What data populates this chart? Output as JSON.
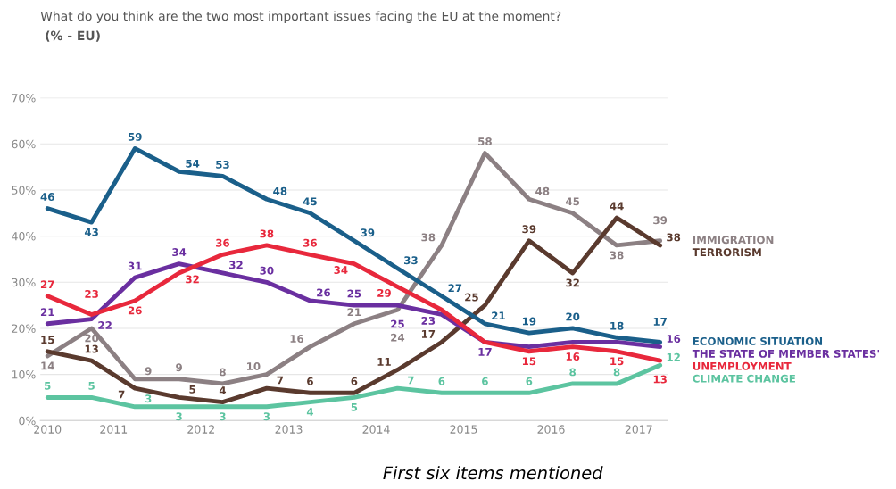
{
  "chart_data": {
    "type": "line",
    "title": "What do you think are the two most important issues facing the EU at the moment?",
    "subtitle": "(% - EU)",
    "x": [
      "2010-05",
      "2010-11",
      "2011-05",
      "2011-11",
      "2012-05",
      "2012-11",
      "2013-05",
      "2013-11",
      "2014-05",
      "2014-11",
      "2015-05",
      "2015-11",
      "2016-05",
      "2016-11",
      "2017-05"
    ],
    "xlim": [
      "2010-04",
      "2017-06"
    ],
    "xticks": [
      {
        "value": "2010-05",
        "label": "2010"
      },
      {
        "value": "2011-02",
        "label": "2011"
      },
      {
        "value": "2012-02",
        "label": "2012"
      },
      {
        "value": "2013-02",
        "label": "2013"
      },
      {
        "value": "2014-02",
        "label": "2014"
      },
      {
        "value": "2015-02",
        "label": "2015"
      },
      {
        "value": "2016-02",
        "label": "2016"
      },
      {
        "value": "2017-02",
        "label": "2017"
      }
    ],
    "ylim": [
      0,
      70
    ],
    "yticks": [
      {
        "value": 0,
        "label": "0%"
      },
      {
        "value": 10,
        "label": "10%"
      },
      {
        "value": 20,
        "label": "20%"
      },
      {
        "value": 30,
        "label": "30%"
      },
      {
        "value": 40,
        "label": "40%"
      },
      {
        "value": 50,
        "label": "50%"
      },
      {
        "value": 60,
        "label": "60%"
      },
      {
        "value": 70,
        "label": "70%"
      }
    ],
    "grid": "y",
    "legend": false,
    "marker": "none",
    "line_style": "solid",
    "series": [
      {
        "name": "IMMIGRATION",
        "color": "#8c8083",
        "values": [
          14,
          20,
          9,
          9,
          8,
          10,
          16,
          21,
          24,
          38,
          58,
          48,
          45,
          38,
          39
        ],
        "value_labels": [
          "14",
          "20",
          "9",
          "9",
          "8",
          "10",
          "16",
          "21",
          "24",
          "38",
          "58",
          "48",
          "45",
          "38",
          "39"
        ]
      },
      {
        "name": "TERRORISM",
        "color": "#5a3a2e",
        "values": [
          15,
          13,
          7,
          5,
          4,
          7,
          6,
          6,
          11,
          17,
          25,
          39,
          32,
          44,
          38
        ],
        "value_labels": [
          "15",
          "13",
          "7",
          "5",
          "4",
          "7",
          "6",
          "6",
          "11",
          "17",
          "25",
          "39",
          "32",
          "44",
          "38"
        ]
      },
      {
        "name": "ECONOMIC SITUATION",
        "color": "#1a5f8a",
        "values": [
          46,
          43,
          59,
          54,
          53,
          48,
          45,
          39,
          33,
          27,
          21,
          19,
          20,
          18,
          17
        ],
        "value_labels": [
          "46",
          "43",
          "59",
          "54",
          "53",
          "48",
          "45",
          "39",
          "33",
          "27",
          "21",
          "19",
          "20",
          "18",
          "17"
        ]
      },
      {
        "name": "THE STATE OF MEMBER STATES'",
        "color": "#6a2fa0",
        "values": [
          21,
          22,
          31,
          34,
          32,
          30,
          26,
          25,
          25,
          23,
          17,
          16,
          17,
          17,
          16
        ],
        "value_labels": [
          "21",
          "22",
          "31",
          "34",
          "32",
          "30",
          "26",
          "25",
          "25",
          "23",
          "17",
          null,
          null,
          null,
          "16"
        ]
      },
      {
        "name": "UNEMPLOYMENT",
        "color": "#e8283c",
        "values": [
          27,
          23,
          26,
          32,
          36,
          38,
          36,
          34,
          29,
          24,
          17,
          15,
          16,
          15,
          13
        ],
        "value_labels": [
          "27",
          "23",
          "26",
          "32",
          "36",
          "38",
          "36",
          "34",
          "29",
          null,
          null,
          "15",
          "16",
          "15",
          "13"
        ]
      },
      {
        "name": "CLIMATE CHANGE",
        "color": "#5cc4a0",
        "values": [
          5,
          5,
          3,
          3,
          3,
          3,
          4,
          5,
          7,
          6,
          6,
          6,
          8,
          8,
          12
        ],
        "value_labels": [
          "5",
          "5",
          "3",
          "3",
          "3",
          "3",
          "4",
          "5",
          "7",
          "6",
          "6",
          "6",
          "8",
          "8",
          "12"
        ]
      }
    ],
    "annotations": [
      "First six items mentioned"
    ]
  }
}
